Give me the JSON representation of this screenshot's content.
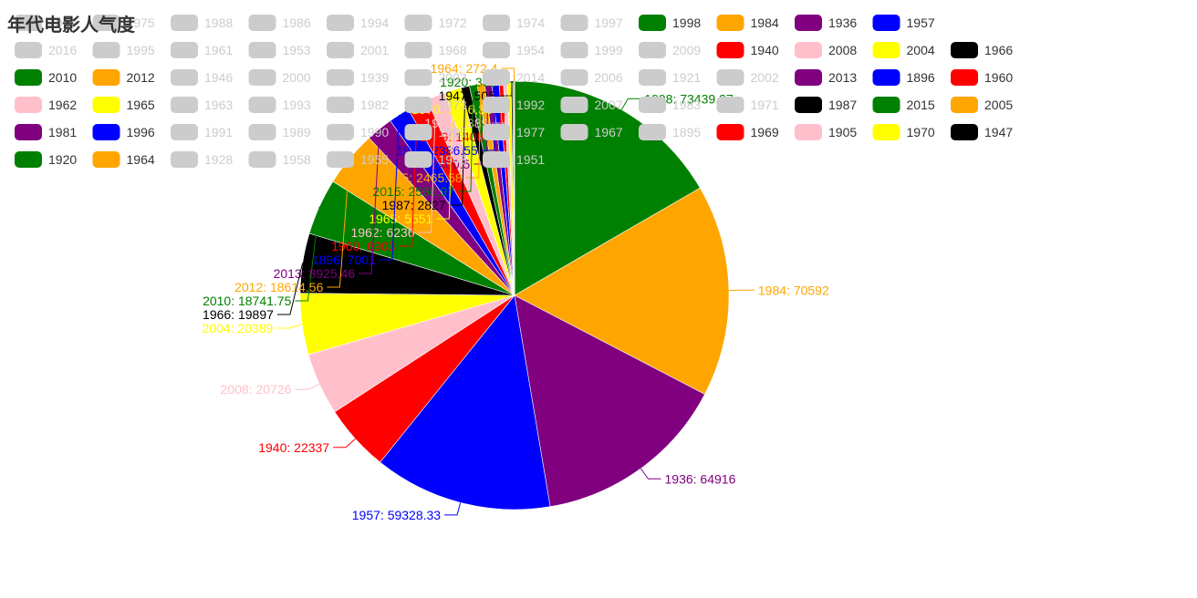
{
  "chart_data": {
    "type": "pie",
    "title": "年代电影人气度",
    "legend_placement": "top",
    "palette": [
      "#008000",
      "#ffa500",
      "#800080",
      "#0000ff",
      "#ff0000",
      "#ffc0cb",
      "#ffff00",
      "#000000"
    ],
    "inactive_color": "#cccccc",
    "inactive_text_color": "#cccccc",
    "active_text_color": "#333333",
    "legend_rows": [
      [
        {
          "name": "2019",
          "on": false
        },
        {
          "name": "1975",
          "on": false
        },
        {
          "name": "1988",
          "on": false
        },
        {
          "name": "1986",
          "on": false
        },
        {
          "name": "1994",
          "on": false
        },
        {
          "name": "1972",
          "on": false
        },
        {
          "name": "1974",
          "on": false
        },
        {
          "name": "1997",
          "on": false
        },
        {
          "name": "1998",
          "on": true
        },
        {
          "name": "1984",
          "on": true
        },
        {
          "name": "1936",
          "on": true
        },
        {
          "name": "1957",
          "on": true
        }
      ],
      [
        {
          "name": "2016",
          "on": false
        },
        {
          "name": "1995",
          "on": false
        },
        {
          "name": "1961",
          "on": false
        },
        {
          "name": "1953",
          "on": false
        },
        {
          "name": "2001",
          "on": false
        },
        {
          "name": "1968",
          "on": false
        },
        {
          "name": "1954",
          "on": false
        },
        {
          "name": "1999",
          "on": false
        },
        {
          "name": "2009",
          "on": false
        },
        {
          "name": "1940",
          "on": true
        },
        {
          "name": "2008",
          "on": true
        },
        {
          "name": "2004",
          "on": true
        },
        {
          "name": "1966",
          "on": true
        }
      ],
      [
        {
          "name": "2010",
          "on": true
        },
        {
          "name": "2012",
          "on": true
        },
        {
          "name": "1946",
          "on": false
        },
        {
          "name": "2000",
          "on": false
        },
        {
          "name": "1939",
          "on": false
        },
        {
          "name": "2003",
          "on": false
        },
        {
          "name": "2014",
          "on": false
        },
        {
          "name": "2006",
          "on": false
        },
        {
          "name": "1921",
          "on": false
        },
        {
          "name": "2002",
          "on": false
        },
        {
          "name": "2013",
          "on": true
        },
        {
          "name": "1896",
          "on": true
        },
        {
          "name": "1960",
          "on": true
        }
      ],
      [
        {
          "name": "1962",
          "on": true
        },
        {
          "name": "1965",
          "on": true
        },
        {
          "name": "1963",
          "on": false
        },
        {
          "name": "1993",
          "on": false
        },
        {
          "name": "1982",
          "on": false
        },
        {
          "name": "1973",
          "on": false
        },
        {
          "name": "1992",
          "on": false
        },
        {
          "name": "2007",
          "on": false
        },
        {
          "name": "1983",
          "on": false
        },
        {
          "name": "1971",
          "on": false
        },
        {
          "name": "1987",
          "on": true
        },
        {
          "name": "2015",
          "on": true
        },
        {
          "name": "2005",
          "on": true
        }
      ],
      [
        {
          "name": "1981",
          "on": true
        },
        {
          "name": "1996",
          "on": true
        },
        {
          "name": "1991",
          "on": false
        },
        {
          "name": "1989",
          "on": false
        },
        {
          "name": "1990",
          "on": false
        },
        {
          "name": "1985",
          "on": false
        },
        {
          "name": "1977",
          "on": false
        },
        {
          "name": "1967",
          "on": false
        },
        {
          "name": "1895",
          "on": false
        },
        {
          "name": "1969",
          "on": true
        },
        {
          "name": "1905",
          "on": true
        },
        {
          "name": "1970",
          "on": true
        },
        {
          "name": "1947",
          "on": true
        }
      ],
      [
        {
          "name": "1920",
          "on": true
        },
        {
          "name": "1964",
          "on": true
        },
        {
          "name": "1928",
          "on": false
        },
        {
          "name": "1958",
          "on": false
        },
        {
          "name": "1955",
          "on": false
        },
        {
          "name": "1943",
          "on": false
        },
        {
          "name": "1951",
          "on": false
        }
      ]
    ],
    "slices": [
      {
        "name": "1998",
        "value": 73439.27
      },
      {
        "name": "1984",
        "value": 70592
      },
      {
        "name": "1936",
        "value": 64916
      },
      {
        "name": "1957",
        "value": 59328.33
      },
      {
        "name": "1940",
        "value": 22337
      },
      {
        "name": "2008",
        "value": 20726
      },
      {
        "name": "2004",
        "value": 20389
      },
      {
        "name": "1966",
        "value": 19897
      },
      {
        "name": "2010",
        "value": 18741.75
      },
      {
        "name": "2012",
        "value": 18614.56
      },
      {
        "name": "2013",
        "value": 8925.46
      },
      {
        "name": "1896",
        "value": 7001
      },
      {
        "name": "1960",
        "value": 6903
      },
      {
        "name": "1962",
        "value": 6236
      },
      {
        "name": "1965",
        "value": 5551
      },
      {
        "name": "1987",
        "value": 2827
      },
      {
        "name": "2015",
        "value": 2560.97
      },
      {
        "name": "2005",
        "value": 2465.58
      },
      {
        "name": "1981",
        "value": 2400.5
      },
      {
        "name": "1996",
        "value": 2386.55
      },
      {
        "name": "1969",
        "value": 1408
      },
      {
        "name": "1905",
        "value": 1389
      },
      {
        "name": "1970",
        "value": 1166.33
      },
      {
        "name": "1947",
        "value": 505
      },
      {
        "name": "1920",
        "value": 361
      },
      {
        "name": "1964",
        "value": 272.4
      }
    ]
  }
}
